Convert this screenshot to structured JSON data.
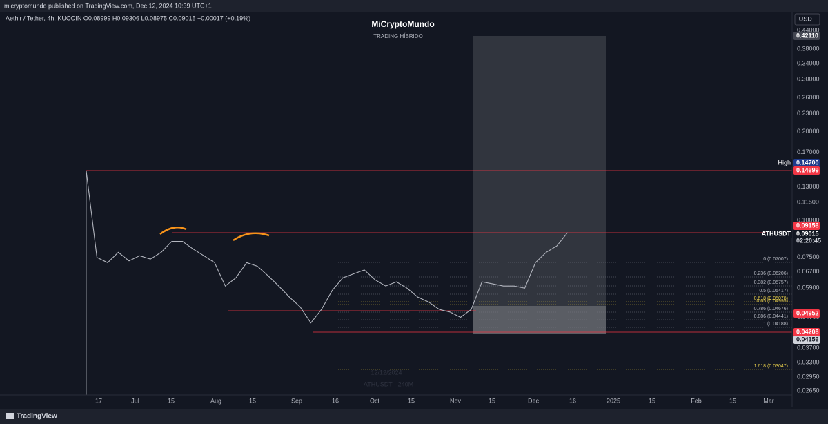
{
  "top_bar": {
    "text": "micryptomundo published on TradingView.com, Dec 12, 2024 10:39 UTC+1"
  },
  "legend": "Aethir / Tether, 4h, KUCOIN  O0.08999  H0.09306  L0.08975  C0.09015  +0.00017 (+0.19%)",
  "watermark": {
    "title": "MiCryptoMundo",
    "subtitle": "TRADING HÍBRIDO",
    "date": "12/12/2024",
    "symbol": "ATHUSDT · 240M"
  },
  "currency": "USDT",
  "chart_data": {
    "type": "line",
    "log": true,
    "ylim": [
      0.0265,
      0.44
    ],
    "yticks": [
      {
        "value": 0.44,
        "label": "0.44000"
      },
      {
        "value": 0.38,
        "label": "0.38000"
      },
      {
        "value": 0.34,
        "label": "0.34000"
      },
      {
        "value": 0.3,
        "label": "0.30000"
      },
      {
        "value": 0.26,
        "label": "0.26000"
      },
      {
        "value": 0.23,
        "label": "0.23000"
      },
      {
        "value": 0.2,
        "label": "0.20000"
      },
      {
        "value": 0.17,
        "label": "0.17000"
      },
      {
        "value": 0.13,
        "label": "0.13000"
      },
      {
        "value": 0.115,
        "label": "0.11500"
      },
      {
        "value": 0.1,
        "label": "0.10000"
      },
      {
        "value": 0.075,
        "label": "0.07500"
      },
      {
        "value": 0.067,
        "label": "0.06700"
      },
      {
        "value": 0.059,
        "label": "0.05900"
      },
      {
        "value": 0.047,
        "label": "0.04700"
      },
      {
        "value": 0.037,
        "label": "0.03700"
      },
      {
        "value": 0.033,
        "label": "0.03300"
      },
      {
        "value": 0.0295,
        "label": "0.02950"
      },
      {
        "value": 0.0265,
        "label": "0.02650"
      }
    ],
    "xlabels": [
      "17",
      "Jul",
      "15",
      "Aug",
      "15",
      "Sep",
      "16",
      "Oct",
      "15",
      "Nov",
      "15",
      "Dec",
      "16",
      "2025",
      "15",
      "Feb",
      "15",
      "Mar"
    ],
    "series": [
      {
        "name": "ATHUSDT",
        "color": "#b2b5be",
        "values": [
          0.147,
          0.075,
          0.072,
          0.078,
          0.073,
          0.076,
          0.074,
          0.078,
          0.085,
          0.085,
          0.08,
          0.076,
          0.072,
          0.06,
          0.064,
          0.072,
          0.07,
          0.065,
          0.06,
          0.055,
          0.051,
          0.045,
          0.05,
          0.058,
          0.064,
          0.066,
          0.068,
          0.063,
          0.06,
          0.062,
          0.059,
          0.055,
          0.053,
          0.05,
          0.049,
          0.047,
          0.05,
          0.062,
          0.061,
          0.06,
          0.06,
          0.059,
          0.072,
          0.078,
          0.082,
          0.091
        ]
      }
    ]
  },
  "fib": [
    "0 (0.07007)",
    "0.236 (0.06206)",
    "0.382 (0.05757)",
    "0.5 (0.05417)",
    "0.618 (0.05078)",
    "0.65 (0.04995)",
    "0.786 (0.04676)",
    "0.886 (0.04441)",
    "1 (0.04188)",
    "1.618 (0.03047)"
  ],
  "tags": {
    "top": "0.42110",
    "high_label": "High",
    "high": "0.14700",
    "r1": "0.14699",
    "r2": "0.09156",
    "sym": "ATHUSDT",
    "last": "0.09015",
    "timer": "02:20:45",
    "r3": "0.04952",
    "r4": "0.04208",
    "low": "0.04156"
  },
  "footer": "TradingView"
}
